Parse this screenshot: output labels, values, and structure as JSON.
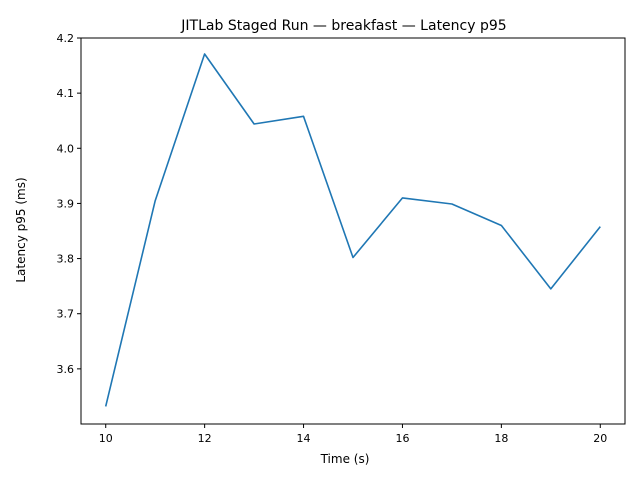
{
  "chart_data": {
    "type": "line",
    "title": "JITLab Staged Run — breakfast — Latency p95",
    "xlabel": "Time (s)",
    "ylabel": "Latency p95 (ms)",
    "xlim": [
      9.5,
      20.5
    ],
    "ylim": [
      3.5,
      4.2
    ],
    "x_ticks": [
      10,
      12,
      14,
      16,
      18,
      20
    ],
    "y_ticks": [
      3.6,
      3.7,
      3.8,
      3.9,
      4.0,
      4.1,
      4.2
    ],
    "y_tick_labels": [
      "3.6",
      "3.7",
      "3.8",
      "3.9",
      "4.0",
      "4.1",
      "4.2"
    ],
    "grid": false,
    "legend": "none",
    "series": [
      {
        "color": "#1f77b4",
        "x": [
          10,
          11,
          12,
          13,
          14,
          15,
          16,
          17,
          18,
          19,
          20
        ],
        "y": [
          3.532,
          3.905,
          4.171,
          4.044,
          4.058,
          3.802,
          3.91,
          3.899,
          3.86,
          3.745,
          3.858
        ]
      }
    ]
  }
}
